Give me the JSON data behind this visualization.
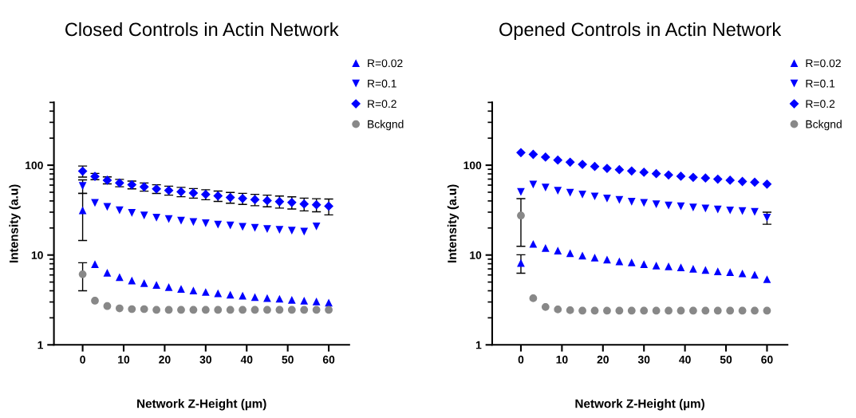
{
  "chart_data": [
    {
      "type": "scatter",
      "title": "Closed Controls in Actin Network",
      "xlabel": "Network Z-Height (µm)",
      "ylabel": "Intensity (a.u)",
      "log": "y",
      "xlim": [
        -7,
        65
      ],
      "xticks": [
        0,
        10,
        20,
        30,
        40,
        50,
        60
      ],
      "ylim": [
        1,
        500
      ],
      "yticks": [
        1,
        10,
        100
      ],
      "grid": false,
      "legend": "top right",
      "x": [
        0,
        3,
        6,
        9,
        12,
        15,
        18,
        21,
        24,
        27,
        30,
        33,
        36,
        39,
        42,
        45,
        48,
        51,
        54,
        57,
        60
      ],
      "series": [
        {
          "name": "R=0.02",
          "color": "#0000ff",
          "marker": "triangle",
          "values": [
            31.5,
            7.9,
            6.35,
            5.67,
            5.2,
            4.87,
            4.65,
            4.4,
            4.2,
            4.03,
            3.88,
            3.75,
            3.62,
            3.53,
            3.41,
            3.32,
            3.26,
            3.17,
            3.11,
            3.05,
            2.95
          ],
          "errors": [
            17,
            null,
            null,
            null,
            null,
            null,
            null,
            null,
            null,
            null,
            null,
            null,
            null,
            null,
            null,
            null,
            null,
            null,
            null,
            null,
            null
          ]
        },
        {
          "name": "R=0.1",
          "color": "#0000ff",
          "marker": "triangle_down",
          "values": [
            58.6,
            38,
            34.4,
            31.5,
            29.5,
            27.6,
            26.1,
            25.1,
            24.1,
            23.3,
            22.6,
            21.8,
            21.3,
            20.6,
            20.1,
            19.5,
            19.1,
            18.7,
            18.2,
            20.8,
            null
          ],
          "errors": [
            10,
            null,
            null,
            null,
            null,
            null,
            null,
            null,
            null,
            null,
            null,
            null,
            null,
            null,
            null,
            null,
            null,
            null,
            null,
            null,
            null
          ]
        },
        {
          "name": "R=0.2",
          "color": "#0000ff",
          "marker": "diamond",
          "values": [
            85.8,
            75,
            68,
            63.5,
            60.6,
            57.4,
            54.5,
            52.4,
            50.6,
            49,
            47.3,
            45.5,
            43.7,
            42.6,
            41.4,
            40.4,
            39.3,
            38.5,
            37,
            36.3,
            35
          ],
          "errors": [
            12,
            6,
            6,
            6,
            6,
            6,
            6,
            6,
            6,
            6,
            6,
            6,
            6,
            6,
            6,
            6,
            6,
            6,
            6,
            6,
            7
          ]
        },
        {
          "name": "Bckgnd",
          "color": "#888888",
          "marker": "circle",
          "values": [
            6.1,
            3.1,
            2.7,
            2.55,
            2.5,
            2.5,
            2.45,
            2.45,
            2.45,
            2.45,
            2.45,
            2.45,
            2.45,
            2.45,
            2.45,
            2.45,
            2.45,
            2.45,
            2.45,
            2.45,
            2.45
          ],
          "errors": [
            2.1,
            null,
            null,
            null,
            null,
            null,
            null,
            null,
            null,
            null,
            null,
            null,
            null,
            null,
            null,
            null,
            null,
            null,
            null,
            null,
            null
          ]
        }
      ]
    },
    {
      "type": "scatter",
      "title": "Opened Controls in Actin Network",
      "xlabel": "Network Z-Height (µm)",
      "ylabel": "Intensity (a.u)",
      "log": "y",
      "xlim": [
        -7,
        65
      ],
      "xticks": [
        0,
        10,
        20,
        30,
        40,
        50,
        60
      ],
      "ylim": [
        1,
        500
      ],
      "yticks": [
        1,
        10,
        100
      ],
      "grid": false,
      "legend": "top right",
      "x": [
        0,
        3,
        6,
        9,
        12,
        15,
        18,
        21,
        24,
        27,
        30,
        33,
        36,
        39,
        42,
        45,
        48,
        51,
        54,
        57,
        60
      ],
      "series": [
        {
          "name": "R=0.02",
          "color": "#0000ff",
          "marker": "triangle",
          "values": [
            8.17,
            13.3,
            12,
            11.2,
            10.5,
            9.87,
            9.35,
            8.92,
            8.5,
            8.28,
            7.9,
            7.64,
            7.49,
            7.29,
            7.05,
            6.81,
            6.59,
            6.46,
            6.24,
            6.04,
            5.38
          ],
          "errors": [
            1.9,
            null,
            null,
            null,
            null,
            null,
            null,
            null,
            null,
            null,
            null,
            null,
            null,
            null,
            null,
            null,
            null,
            null,
            null,
            null,
            null
          ]
        },
        {
          "name": "R=0.1",
          "color": "#0000ff",
          "marker": "triangle_down",
          "values": [
            50.4,
            60.8,
            56.4,
            52,
            49.3,
            47.1,
            44.9,
            42.5,
            41.1,
            39.2,
            38,
            36.7,
            35.5,
            34.8,
            33.8,
            32.9,
            32.1,
            31.4,
            30.8,
            30.2,
            26
          ],
          "errors": [
            null,
            null,
            null,
            null,
            null,
            null,
            null,
            null,
            null,
            null,
            null,
            null,
            null,
            null,
            null,
            null,
            null,
            null,
            null,
            null,
            4
          ]
        },
        {
          "name": "R=0.2",
          "color": "#0000ff",
          "marker": "diamond",
          "values": [
            138,
            132,
            123,
            114,
            108,
            102,
            96.7,
            92.2,
            89.2,
            86.3,
            83.4,
            80.6,
            77.9,
            75.4,
            73.3,
            71.9,
            70,
            68.1,
            65.9,
            64.6,
            61.6
          ]
        },
        {
          "name": "Bckgnd",
          "color": "#888888",
          "marker": "circle",
          "values": [
            27.5,
            3.3,
            2.64,
            2.48,
            2.43,
            2.4,
            2.4,
            2.4,
            2.4,
            2.4,
            2.4,
            2.4,
            2.4,
            2.4,
            2.4,
            2.4,
            2.4,
            2.4,
            2.4,
            2.4,
            2.4
          ],
          "errors": [
            15,
            null,
            null,
            null,
            null,
            null,
            null,
            null,
            null,
            null,
            null,
            null,
            null,
            null,
            null,
            null,
            null,
            null,
            null,
            null,
            null
          ]
        }
      ]
    }
  ]
}
